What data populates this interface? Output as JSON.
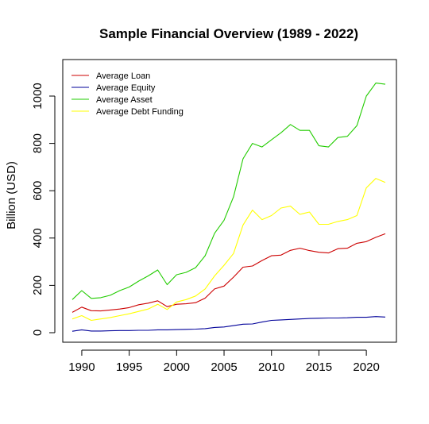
{
  "chart_data": {
    "type": "line",
    "title": "Sample Financial Overview (1989 - 2022)",
    "xlabel": "",
    "ylabel": "Billion (USD)",
    "xlim": [
      1989,
      2022
    ],
    "ylim": [
      0,
      1060
    ],
    "x_ticks": [
      1990,
      1995,
      2000,
      2005,
      2010,
      2015,
      2020
    ],
    "y_ticks": [
      0,
      200,
      400,
      600,
      800,
      1000
    ],
    "grid": false,
    "legend_position": "top-left",
    "x": [
      1989,
      1990,
      1991,
      1992,
      1993,
      1994,
      1995,
      1996,
      1997,
      1998,
      1999,
      2000,
      2001,
      2002,
      2003,
      2004,
      2005,
      2006,
      2007,
      2008,
      2009,
      2010,
      2011,
      2012,
      2013,
      2014,
      2015,
      2016,
      2017,
      2018,
      2019,
      2020,
      2021,
      2022
    ],
    "series": [
      {
        "name": "Average Loan",
        "color": "#cc0000",
        "values": [
          86,
          108,
          93,
          92,
          96,
          100,
          106,
          118,
          125,
          135,
          110,
          120,
          122,
          127,
          146,
          185,
          197,
          235,
          277,
          282,
          305,
          325,
          328,
          348,
          357,
          347,
          340,
          337,
          355,
          357,
          378,
          385,
          403,
          418
        ]
      },
      {
        "name": "Average Equity",
        "color": "#000099",
        "values": [
          6,
          12,
          7,
          7,
          8,
          9,
          9,
          10,
          10,
          12,
          12,
          13,
          14,
          15,
          17,
          22,
          24,
          30,
          36,
          37,
          45,
          52,
          54,
          56,
          58,
          60,
          61,
          62,
          62,
          63,
          65,
          65,
          68,
          66
        ]
      },
      {
        "name": "Average Asset",
        "color": "#22cc00",
        "values": [
          140,
          178,
          145,
          148,
          158,
          178,
          193,
          218,
          240,
          265,
          203,
          245,
          255,
          275,
          325,
          420,
          475,
          575,
          735,
          800,
          785,
          815,
          845,
          880,
          855,
          855,
          790,
          785,
          825,
          830,
          875,
          1000,
          1055,
          1050
        ]
      },
      {
        "name": "Average Debt Funding",
        "color": "#ffff00",
        "values": [
          58,
          72,
          52,
          58,
          64,
          72,
          80,
          90,
          100,
          120,
          98,
          130,
          140,
          155,
          185,
          240,
          285,
          335,
          455,
          518,
          478,
          495,
          527,
          535,
          500,
          510,
          458,
          458,
          470,
          478,
          495,
          612,
          652,
          635
        ]
      }
    ]
  }
}
